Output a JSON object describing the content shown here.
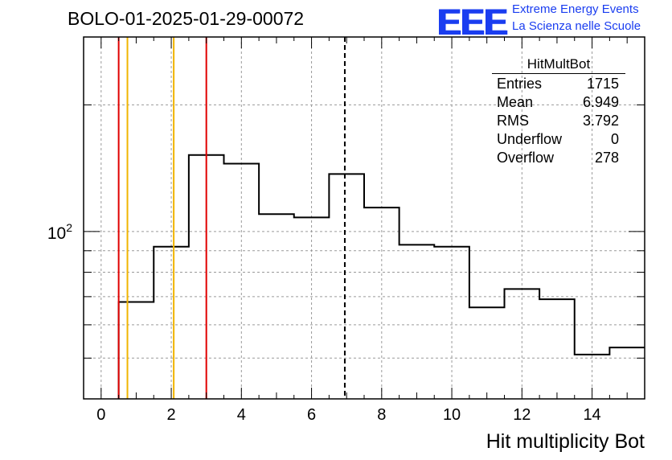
{
  "title": "BOLO-01-2025-01-29-00072",
  "logo": {
    "mark": "EEE",
    "line1": "Extreme Energy Events",
    "line2": "La Scienza nelle Scuole",
    "color": "#1a3df0"
  },
  "stats_box": {
    "name": "HitMultBot",
    "rows": [
      {
        "label": "Entries",
        "value": "1715"
      },
      {
        "label": "Mean",
        "value": "6.949"
      },
      {
        "label": "RMS",
        "value": "3.792"
      },
      {
        "label": "Underflow",
        "value": "0"
      },
      {
        "label": "Overflow",
        "value": "278"
      }
    ]
  },
  "chart_data": {
    "type": "histogram",
    "title": "BOLO-01-2025-01-29-00072",
    "xlabel": "Hit multiplicity Bot",
    "ylabel": "",
    "y_scale": "log",
    "xlim": [
      -0.5,
      15.5
    ],
    "ylim": [
      40,
      290
    ],
    "grid": true,
    "x_ticks": [
      0,
      2,
      4,
      6,
      8,
      10,
      12,
      14
    ],
    "y_tick_label": {
      "base": "10",
      "exp": "2",
      "value": 100
    },
    "bin_edges": [
      0.5,
      1.5,
      2.5,
      3.5,
      4.5,
      5.5,
      6.5,
      7.5,
      8.5,
      9.5,
      10.5,
      11.5,
      12.5,
      13.5,
      14.5,
      15.5
    ],
    "counts": [
      68,
      92,
      152,
      145,
      110,
      108,
      137,
      114,
      93,
      92,
      66,
      73,
      69,
      51,
      53
    ],
    "vertical_lines": [
      {
        "x": 0.5,
        "color": "#e00000",
        "style": "solid"
      },
      {
        "x": 0.75,
        "color": "#f0b400",
        "style": "solid"
      },
      {
        "x": 2.07,
        "color": "#f0b400",
        "style": "solid"
      },
      {
        "x": 3.0,
        "color": "#e00000",
        "style": "solid"
      },
      {
        "x": 6.949,
        "color": "#000000",
        "style": "dashed"
      }
    ]
  }
}
